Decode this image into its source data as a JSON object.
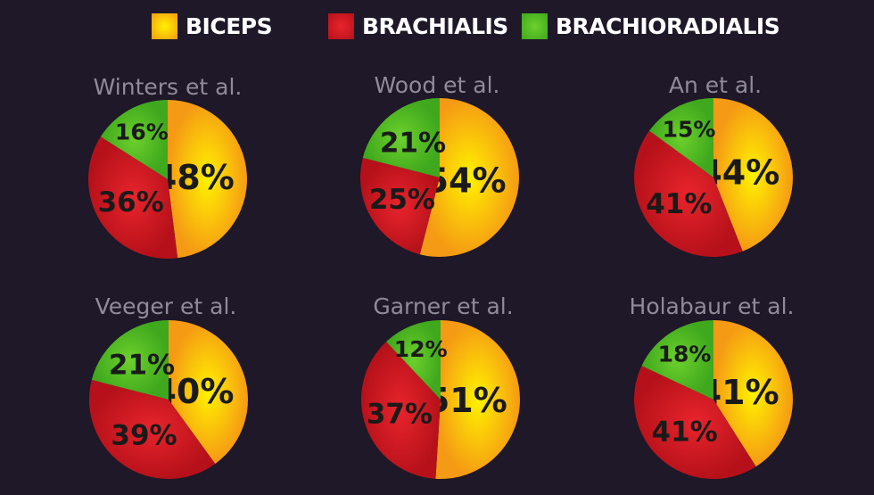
{
  "legend": {
    "biceps_label": "BICEPS",
    "brachialis_label": "BRACHIALIS",
    "brachioradialis_label": "BRACHIORADIALIS"
  },
  "colors": {
    "biceps": [
      "#fff200",
      "#f59a14"
    ],
    "brachialis": [
      "#e8242c",
      "#b6111a"
    ],
    "brachioradialis": [
      "#6cd02c",
      "#3fa81d"
    ],
    "background": "#1e1828",
    "title": "#8f8b98"
  },
  "chart_data": [
    {
      "type": "pie",
      "title": "Winters et al.",
      "series_order": [
        "biceps",
        "brachialis",
        "brachioradialis"
      ],
      "values": [
        48,
        36,
        16
      ],
      "labels": [
        "48%",
        "36%",
        "16%"
      ]
    },
    {
      "type": "pie",
      "title": "Wood et al.",
      "series_order": [
        "biceps",
        "brachialis",
        "brachioradialis"
      ],
      "values": [
        54,
        25,
        21
      ],
      "labels": [
        "54%",
        "25%",
        "21%"
      ]
    },
    {
      "type": "pie",
      "title": "An et al.",
      "series_order": [
        "biceps",
        "brachialis",
        "brachioradialis"
      ],
      "values": [
        44,
        41,
        15
      ],
      "labels": [
        "44%",
        "41%",
        "15%"
      ]
    },
    {
      "type": "pie",
      "title": "Veeger et al.",
      "series_order": [
        "biceps",
        "brachialis",
        "brachioradialis"
      ],
      "values": [
        40,
        39,
        21
      ],
      "labels": [
        "40%",
        "39%",
        "21%"
      ]
    },
    {
      "type": "pie",
      "title": "Garner et al.",
      "series_order": [
        "biceps",
        "brachialis",
        "brachioradialis"
      ],
      "values": [
        51,
        37,
        12
      ],
      "labels": [
        "51%",
        "37%",
        "12%"
      ]
    },
    {
      "type": "pie",
      "title": "Holabaur et al.",
      "series_order": [
        "biceps",
        "brachialis",
        "brachioradialis"
      ],
      "values": [
        41,
        41,
        18
      ],
      "labels": [
        "41%",
        "41%",
        "18%"
      ]
    }
  ]
}
